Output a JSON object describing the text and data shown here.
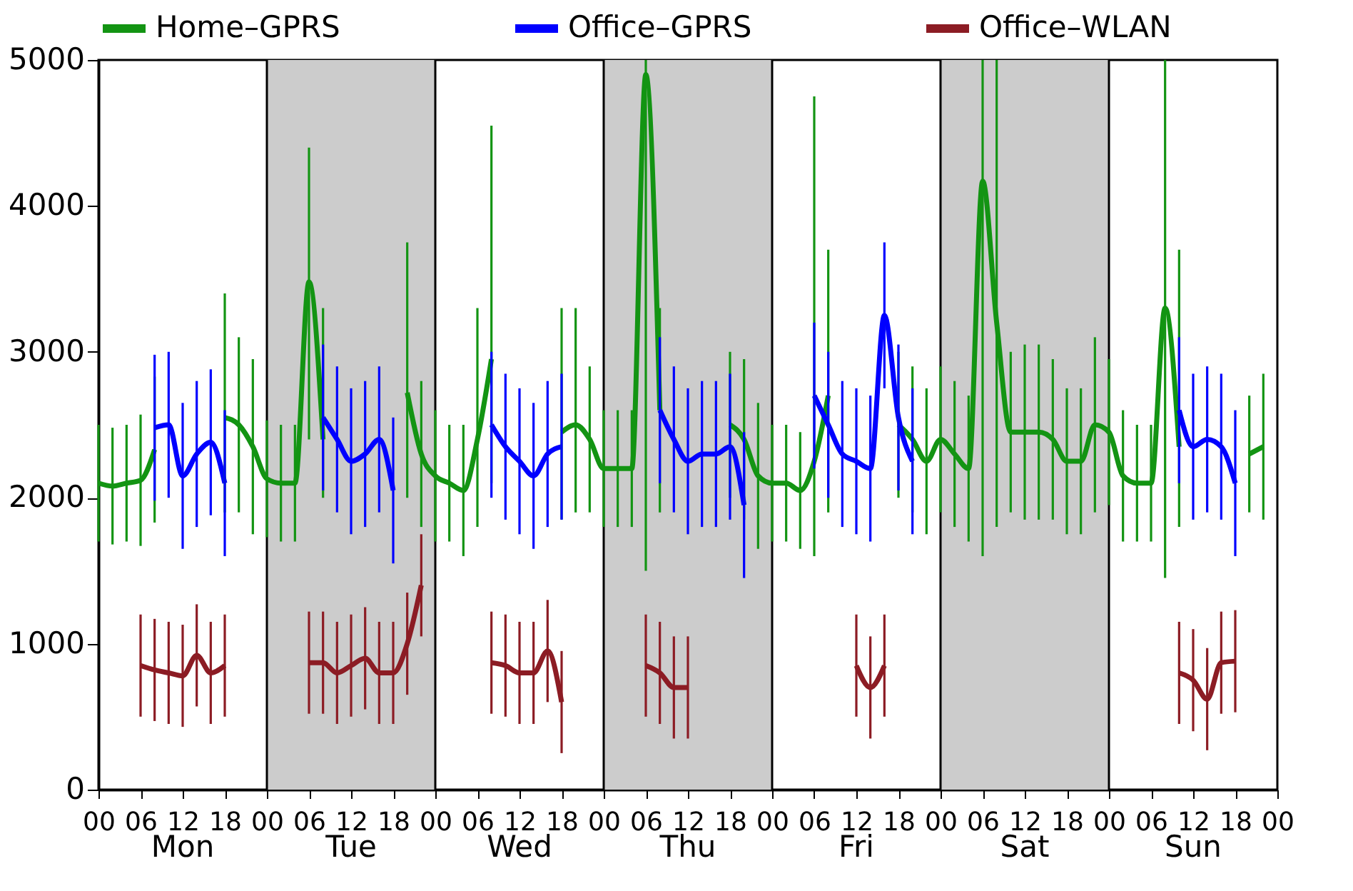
{
  "chart_data": {
    "type": "line",
    "x": [
      0,
      2,
      4,
      6,
      8,
      10,
      12,
      14,
      16,
      18,
      20,
      22,
      24,
      26,
      28,
      30,
      32,
      34,
      36,
      38,
      40,
      42,
      44,
      46,
      48,
      50,
      52,
      54,
      56,
      58,
      60,
      62,
      64,
      66,
      68,
      70,
      72,
      74,
      76,
      78,
      80,
      82,
      84,
      86,
      88,
      90,
      92,
      94,
      96,
      98,
      100,
      102,
      104,
      106,
      108,
      110,
      112,
      114,
      116,
      118,
      120,
      122,
      124,
      126,
      128,
      130,
      132,
      134,
      136,
      138,
      140,
      142,
      144,
      146,
      148,
      150,
      152,
      154,
      156,
      158,
      160,
      162,
      164,
      166
    ],
    "series": [
      {
        "name": "Home–GPRS",
        "color": "#139413",
        "values": [
          2100,
          2080,
          2100,
          2120,
          2330,
          null,
          null,
          null,
          null,
          2550,
          2500,
          2350,
          2130,
          2100,
          2100,
          3480,
          2400,
          null,
          null,
          null,
          null,
          null,
          2720,
          2300,
          2150,
          2100,
          2050,
          2400,
          2950,
          null,
          null,
          null,
          null,
          2450,
          2500,
          2400,
          2200,
          2200,
          2200,
          4900,
          2600,
          null,
          null,
          null,
          null,
          2500,
          2400,
          2150,
          2100,
          2100,
          2050,
          2250,
          2700,
          null,
          null,
          null,
          null,
          2500,
          2400,
          2250,
          2400,
          2300,
          2200,
          4170,
          3200,
          2450,
          2450,
          2450,
          2400,
          2250,
          2250,
          2500,
          2450,
          2150,
          2100,
          2100,
          3300,
          2350,
          null,
          null,
          null,
          null,
          2300,
          2350
        ],
        "errors": [
          400,
          400,
          400,
          450,
          500,
          null,
          null,
          null,
          null,
          [
            1900,
            3400
          ],
          600,
          600,
          400,
          400,
          400,
          [
            2400,
            4400
          ],
          [
            2000,
            3300
          ],
          null,
          null,
          null,
          null,
          null,
          [
            2000,
            3750
          ],
          500,
          450,
          400,
          450,
          [
            1800,
            3300
          ],
          [
            2100,
            4550
          ],
          null,
          null,
          null,
          null,
          [
            1850,
            3300
          ],
          [
            1900,
            3300
          ],
          500,
          400,
          400,
          400,
          [
            1500,
            5000
          ],
          [
            1900,
            3300
          ],
          null,
          null,
          null,
          null,
          500,
          550,
          500,
          400,
          400,
          400,
          [
            1600,
            4750
          ],
          [
            1900,
            3700
          ],
          null,
          null,
          null,
          null,
          500,
          500,
          500,
          500,
          500,
          500,
          [
            1600,
            5000
          ],
          [
            1800,
            5000
          ],
          550,
          600,
          600,
          550,
          500,
          500,
          600,
          500,
          450,
          400,
          400,
          [
            1450,
            5000
          ],
          [
            1800,
            3700
          ],
          null,
          null,
          null,
          null,
          400,
          500
        ]
      },
      {
        "name": "Office–GPRS",
        "color": "#0000ff",
        "values": [
          null,
          null,
          null,
          null,
          2480,
          2500,
          2150,
          2300,
          2380,
          2100,
          null,
          null,
          null,
          null,
          null,
          null,
          2550,
          2400,
          2250,
          2300,
          2400,
          2050,
          null,
          null,
          null,
          null,
          null,
          null,
          2500,
          2350,
          2250,
          2150,
          2300,
          2350,
          null,
          null,
          null,
          null,
          null,
          null,
          2600,
          2400,
          2250,
          2300,
          2300,
          2350,
          1950,
          null,
          null,
          null,
          null,
          2700,
          2500,
          2300,
          2250,
          2200,
          3250,
          2550,
          2250,
          null,
          null,
          null,
          null,
          null,
          null,
          null,
          null,
          null,
          null,
          null,
          null,
          null,
          null,
          null,
          null,
          null,
          null,
          2600,
          2350,
          2400,
          2350,
          2100,
          null,
          null
        ],
        "errors": [
          null,
          null,
          null,
          null,
          500,
          500,
          500,
          500,
          500,
          500,
          null,
          null,
          null,
          null,
          null,
          null,
          500,
          500,
          500,
          500,
          500,
          500,
          null,
          null,
          null,
          null,
          null,
          null,
          500,
          500,
          500,
          500,
          500,
          500,
          null,
          null,
          null,
          null,
          null,
          null,
          500,
          500,
          500,
          500,
          500,
          500,
          500,
          null,
          null,
          null,
          null,
          500,
          500,
          500,
          500,
          500,
          500,
          500,
          500,
          null,
          null,
          null,
          null,
          null,
          null,
          null,
          null,
          null,
          null,
          null,
          null,
          null,
          null,
          null,
          null,
          null,
          null,
          500,
          500,
          500,
          500,
          500,
          null,
          null
        ]
      },
      {
        "name": "Office–WLAN",
        "color": "#8c1c24",
        "values": [
          null,
          null,
          null,
          850,
          820,
          800,
          780,
          920,
          800,
          850,
          null,
          null,
          null,
          null,
          null,
          870,
          870,
          800,
          850,
          900,
          800,
          800,
          1000,
          1400,
          null,
          null,
          null,
          null,
          870,
          850,
          800,
          800,
          950,
          600,
          null,
          null,
          null,
          null,
          null,
          850,
          800,
          700,
          700,
          null,
          null,
          null,
          null,
          null,
          null,
          null,
          null,
          null,
          null,
          null,
          850,
          700,
          850,
          null,
          null,
          null,
          null,
          null,
          null,
          null,
          null,
          null,
          null,
          null,
          null,
          null,
          null,
          null,
          null,
          null,
          null,
          null,
          null,
          800,
          750,
          620,
          870,
          880,
          null,
          null
        ],
        "errors": [
          null,
          null,
          null,
          350,
          350,
          350,
          350,
          350,
          350,
          350,
          null,
          null,
          null,
          null,
          null,
          350,
          350,
          350,
          350,
          350,
          350,
          350,
          350,
          350,
          null,
          null,
          null,
          null,
          350,
          350,
          350,
          350,
          350,
          350,
          null,
          null,
          null,
          null,
          null,
          350,
          350,
          350,
          350,
          null,
          null,
          null,
          null,
          null,
          null,
          null,
          null,
          null,
          null,
          null,
          350,
          350,
          350,
          null,
          null,
          null,
          null,
          null,
          null,
          null,
          null,
          null,
          null,
          null,
          null,
          null,
          null,
          null,
          null,
          null,
          null,
          null,
          null,
          350,
          350,
          350,
          350,
          350,
          null,
          null
        ]
      }
    ],
    "xlim": [
      0,
      168
    ],
    "xticks": [
      {
        "value": 0,
        "label": "00"
      },
      {
        "value": 6,
        "label": "06"
      },
      {
        "value": 12,
        "label": "12"
      },
      {
        "value": 18,
        "label": "18"
      },
      {
        "value": 24,
        "label": "00"
      },
      {
        "value": 30,
        "label": "06"
      },
      {
        "value": 36,
        "label": "12"
      },
      {
        "value": 42,
        "label": "18"
      },
      {
        "value": 48,
        "label": "00"
      },
      {
        "value": 54,
        "label": "06"
      },
      {
        "value": 60,
        "label": "12"
      },
      {
        "value": 66,
        "label": "18"
      },
      {
        "value": 72,
        "label": "00"
      },
      {
        "value": 78,
        "label": "06"
      },
      {
        "value": 84,
        "label": "12"
      },
      {
        "value": 90,
        "label": "18"
      },
      {
        "value": 96,
        "label": "00"
      },
      {
        "value": 102,
        "label": "06"
      },
      {
        "value": 108,
        "label": "12"
      },
      {
        "value": 114,
        "label": "18"
      },
      {
        "value": 120,
        "label": "00"
      },
      {
        "value": 126,
        "label": "06"
      },
      {
        "value": 132,
        "label": "12"
      },
      {
        "value": 138,
        "label": "18"
      },
      {
        "value": 144,
        "label": "00"
      },
      {
        "value": 150,
        "label": "06"
      },
      {
        "value": 156,
        "label": "12"
      },
      {
        "value": 162,
        "label": "18"
      },
      {
        "value": 168,
        "label": "00"
      }
    ],
    "ylim": [
      0,
      5000
    ],
    "yticks": [
      0,
      1000,
      2000,
      3000,
      4000,
      5000
    ],
    "bands": [
      {
        "axis": "x",
        "from": 24,
        "to": 48,
        "color": "#cccccc"
      },
      {
        "axis": "x",
        "from": 72,
        "to": 96,
        "color": "#cccccc"
      },
      {
        "axis": "x",
        "from": 120,
        "to": 144,
        "color": "#cccccc"
      }
    ],
    "ref_lines": [
      {
        "axis": "x",
        "value": 24,
        "color": "#000000"
      },
      {
        "axis": "x",
        "value": 48,
        "color": "#000000"
      },
      {
        "axis": "x",
        "value": 72,
        "color": "#000000"
      },
      {
        "axis": "x",
        "value": 96,
        "color": "#000000"
      },
      {
        "axis": "x",
        "value": 120,
        "color": "#000000"
      },
      {
        "axis": "x",
        "value": 144,
        "color": "#000000"
      }
    ],
    "annotations": [
      "Mon",
      "Tue",
      "Wed",
      "Thu",
      "Fri",
      "Sat",
      "Sun"
    ],
    "legend": "top",
    "grid": false,
    "marker": "none",
    "line_style": "solid"
  }
}
